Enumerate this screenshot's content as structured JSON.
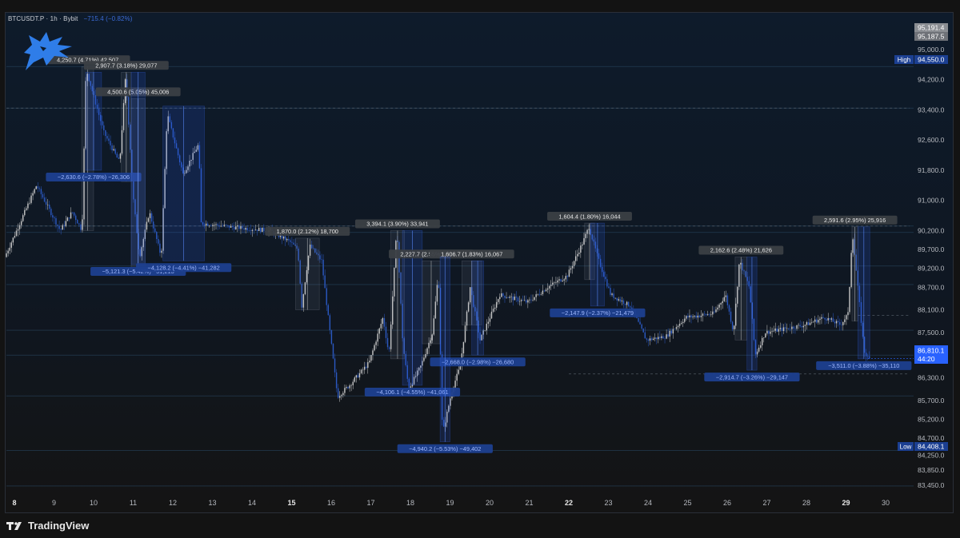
{
  "header": {
    "symbol": "BTCUSDT.P",
    "interval": "1h",
    "exchange": "Bybit",
    "change": "−715.4 (−0.82%)"
  },
  "branding": {
    "name": "TradingView",
    "logo_icon": "tradingview-logo-icon",
    "channel_icon": "blue-wolf-logo-icon"
  },
  "colors": {
    "up": "#c9c9c9",
    "down": "#2b59c3",
    "box_blue": "#1d3f8f",
    "price_tag": "#2962ff",
    "label_gray": "#3b3f45"
  },
  "chart_data": {
    "type": "candlestick",
    "title": "",
    "x_ticks": [
      "8",
      "9",
      "10",
      "11",
      "12",
      "13",
      "14",
      "15",
      "16",
      "17",
      "18",
      "19",
      "20",
      "21",
      "22",
      "23",
      "24",
      "25",
      "26",
      "27",
      "28",
      "29",
      "30"
    ],
    "bold_ticks": [
      "8",
      "15",
      "22",
      "29"
    ],
    "y_ticks": [
      95000,
      94200,
      93400,
      92600,
      91800,
      91000,
      90200,
      89700,
      89200,
      88700,
      88100,
      87500,
      87000,
      86300,
      85700,
      85200,
      84700,
      84250,
      83850,
      83450
    ],
    "ylim": [
      83100,
      95500
    ],
    "price_tags": {
      "top_a": "95,191.4",
      "top_b": "95,187.5",
      "high_label": "High",
      "high_value": "94,550.0",
      "current_price": "86,810.1",
      "countdown": "44:20",
      "low_label": "Low",
      "low_value": "84,408.1"
    },
    "measure_boxes": [
      {
        "text": "4,250.7 (4.71%) 42,507",
        "dir": "up",
        "d0": 9.7,
        "d1": 10.0,
        "p0": 90200,
        "p1": 94550
      },
      {
        "text": "2,907.7 (3.18%) 29,077",
        "dir": "up",
        "d0": 10.7,
        "d1": 10.95,
        "p0": 91500,
        "p1": 94400
      },
      {
        "text": "−2,630.6 (−2.78%) −26,306",
        "dir": "down",
        "d0": 9.8,
        "d1": 10.2,
        "p0": 91800,
        "p1": 94400
      },
      {
        "text": "4,500.6 (5.05%) 45,006",
        "dir": "up",
        "d0": 10.95,
        "d1": 11.3,
        "p0": 89200,
        "p1": 93700
      },
      {
        "text": "−5,121.3 (−5.42%) −51,213",
        "dir": "down",
        "d0": 10.95,
        "d1": 11.3,
        "p0": 89300,
        "p1": 94400
      },
      {
        "text": "−4,128.2 (−4.41%) −41,282",
        "dir": "down",
        "d0": 11.75,
        "d1": 12.8,
        "p0": 89400,
        "p1": 93500
      },
      {
        "text": "1,870.0 (2.12%) 18,700",
        "dir": "up",
        "d0": 15.1,
        "d1": 15.7,
        "p0": 88100,
        "p1": 90000
      },
      {
        "text": "3,394.1 (3.90%) 33,941",
        "dir": "up",
        "d0": 17.5,
        "d1": 17.85,
        "p0": 86800,
        "p1": 90200
      },
      {
        "text": "−4,106.1 (−4.55%) −41,061",
        "dir": "down",
        "d0": 17.8,
        "d1": 18.3,
        "p0": 86100,
        "p1": 90200
      },
      {
        "text": "2,227.7 (2.55%) 22,277",
        "dir": "up",
        "d0": 18.3,
        "d1": 18.75,
        "p0": 87200,
        "p1": 89400
      },
      {
        "text": "1,606.7 (1.83%) 16,067",
        "dir": "up",
        "d0": 19.3,
        "d1": 19.8,
        "p0": 87700,
        "p1": 89400
      },
      {
        "text": "−2,668.0 (−2.98%) −26,680",
        "dir": "down",
        "d0": 19.55,
        "d1": 19.85,
        "p0": 86900,
        "p1": 89400
      },
      {
        "text": "−4,940.2 (−5.53%) −49,402",
        "dir": "down",
        "d0": 18.75,
        "d1": 19.0,
        "p0": 84600,
        "p1": 89500
      },
      {
        "text": "1,604.4 (1.80%) 16,044",
        "dir": "up",
        "d0": 22.4,
        "d1": 22.65,
        "p0": 88900,
        "p1": 90400
      },
      {
        "text": "−2,147.9 (−2.37%) −21,479",
        "dir": "down",
        "d0": 22.55,
        "d1": 22.9,
        "p0": 88200,
        "p1": 90400
      },
      {
        "text": "2,162.6 (2.48%) 21,626",
        "dir": "up",
        "d0": 26.2,
        "d1": 26.5,
        "p0": 87300,
        "p1": 89500
      },
      {
        "text": "−2,914.7 (−3.26%) −29,147",
        "dir": "down",
        "d0": 26.5,
        "d1": 26.75,
        "p0": 86500,
        "p1": 89500
      },
      {
        "text": "2,591.6 (2.95%) 25,916",
        "dir": "up",
        "d0": 29.15,
        "d1": 29.3,
        "p0": 87800,
        "p1": 90300
      },
      {
        "text": "−3,511.0 (−3.88%) −35,110",
        "dir": "down",
        "d0": 29.3,
        "d1": 29.6,
        "p0": 86800,
        "p1": 90300
      }
    ],
    "h_levels": [
      94550,
      93450,
      90320,
      90150,
      89260,
      88770,
      87560,
      86900,
      85820,
      84370,
      83430
    ],
    "dashed_levels": [
      {
        "p": 93450,
        "d0": 7.8,
        "d1": 30.6
      },
      {
        "p": 90320,
        "d0": 7.8,
        "d1": 30.6
      },
      {
        "p": 86400,
        "d0": 22.0,
        "d1": 30.6
      },
      {
        "p": 87950,
        "d0": 29.3,
        "d1": 30.6
      }
    ]
  }
}
